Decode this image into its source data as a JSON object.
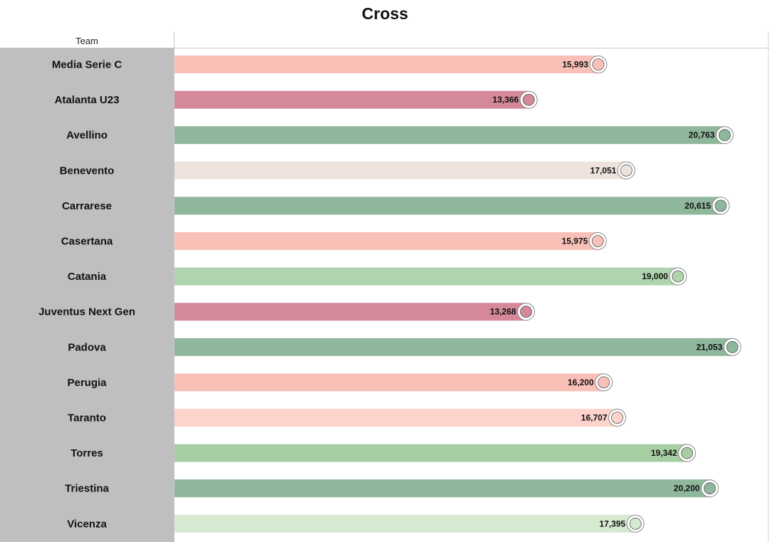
{
  "chart_data": {
    "type": "bar",
    "orientation": "horizontal",
    "title": "Cross",
    "column_header": "Team",
    "categories": [
      "Media Serie C",
      "Atalanta U23",
      "Avellino",
      "Benevento",
      "Carrarese",
      "Casertana",
      "Catania",
      "Juventus Next Gen",
      "Padova",
      "Perugia",
      "Taranto",
      "Torres",
      "Triestina",
      "Vicenza"
    ],
    "values": [
      15.993,
      13.366,
      20.763,
      17.051,
      20.615,
      15.975,
      19.0,
      13.268,
      21.053,
      16.2,
      16.707,
      19.342,
      20.2,
      17.395
    ],
    "value_labels": [
      "15,993",
      "13,366",
      "20,763",
      "17,051",
      "20,615",
      "15,975",
      "19,000",
      "13,268",
      "21,053",
      "16,200",
      "16,707",
      "19,342",
      "20,200",
      "17,395"
    ],
    "bar_colors": [
      "#f9c0b8",
      "#d48898",
      "#8fb79c",
      "#ede3dc",
      "#8fb79c",
      "#f9c0b8",
      "#b0d4ad",
      "#d48898",
      "#8fb79c",
      "#f9c0b8",
      "#fdd3cc",
      "#a7cda3",
      "#8fb79c",
      "#d6ead2"
    ],
    "badge_icons": [
      "serie-c-logo-icon",
      "atalanta-crest-icon",
      "avellino-crest-icon",
      "benevento-crest-icon",
      "carrarese-crest-icon",
      "casertana-crest-icon",
      "catania-crest-icon",
      "juventus-crest-icon",
      "padova-crest-icon",
      "perugia-crest-icon",
      "taranto-crest-icon",
      "torres-crest-icon",
      "triestina-crest-icon",
      "vicenza-crest-icon"
    ],
    "xlim": [
      0,
      22
    ],
    "grid": false,
    "legend": "none"
  }
}
